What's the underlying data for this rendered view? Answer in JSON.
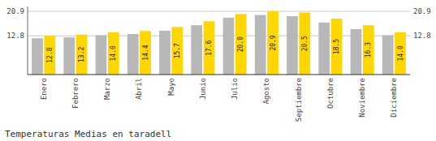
{
  "chart_data": {
    "type": "bar",
    "title": "Temperaturas Medias en taradell",
    "categories": [
      "Enero",
      "Febrero",
      "Marzo",
      "Abril",
      "Mayo",
      "Junio",
      "Julio",
      "Agosto",
      "Septiembre",
      "Octubre",
      "Noviembre",
      "Diciembre"
    ],
    "series": [
      {
        "color": "#B8B8B8",
        "values": [
          12.0,
          12.3,
          13.0,
          13.4,
          14.5,
          16.3,
          18.8,
          19.7,
          19.3,
          17.2,
          15.0,
          13.0
        ]
      },
      {
        "color": "#FFD700",
        "values": [
          12.8,
          13.2,
          14.0,
          14.4,
          15.7,
          17.6,
          20.0,
          20.9,
          20.5,
          18.5,
          16.3,
          14.0
        ],
        "value_labels": [
          "12.8",
          "13.2",
          "14.0",
          "14.4",
          "15.7",
          "17.6",
          "20.0",
          "20.9",
          "20.5",
          "18.5",
          "16.3",
          "14.0"
        ],
        "data_labels": true
      }
    ],
    "ylim": [
      0,
      22.5
    ],
    "yticks": [
      12.8,
      20.9
    ],
    "grid": true
  }
}
